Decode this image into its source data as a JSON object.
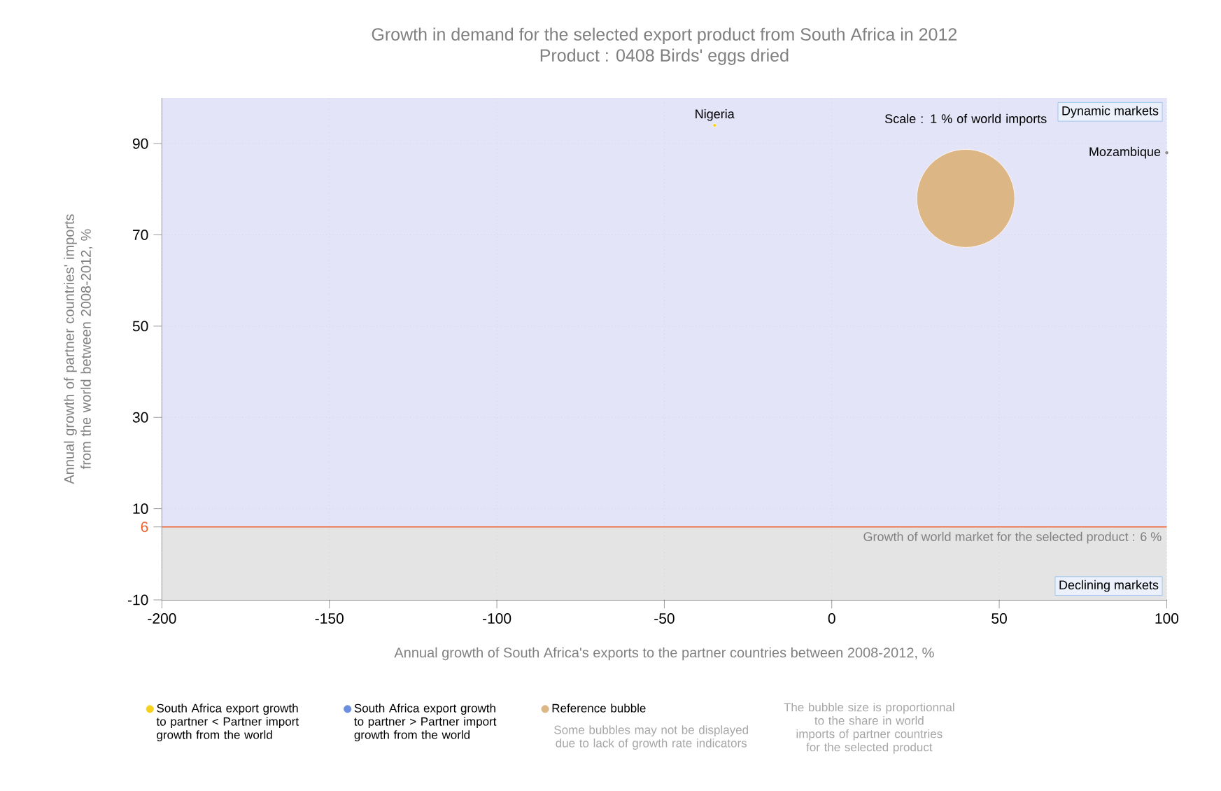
{
  "chart_data": {
    "type": "bubble",
    "title": "Growth in demand for the selected export product from South Africa in 2012",
    "subtitle": "Product : 0408 Birds' eggs dried",
    "xlabel": "Annual growth of South Africa's exports to the partner countries between 2008-2012, %",
    "ylabel": "Annual growth of partner countries' imports from the world between 2008-2012, %",
    "series": [
      {
        "name": "South Africa export growth to partner < Partner import growth from the world",
        "color": "#f5d21e",
        "x": [
          -35
        ],
        "values": [
          94
        ],
        "sizes": [
          0.001
        ]
      },
      {
        "name": "South Africa export growth to partner > Partner import growth from the world",
        "color": "#6a8fe0"
      },
      {
        "name": "Reference bubble",
        "color": "#ddb685",
        "x": [
          40
        ],
        "values": [
          78
        ],
        "sizes": [
          1
        ]
      },
      {
        "color": "#8c8c8c",
        "x": [
          100
        ],
        "values": [
          88
        ],
        "sizes": [
          0.001
        ]
      }
    ],
    "xlim": [
      -200,
      100
    ],
    "ylim": [
      -10,
      100
    ],
    "xticks": [
      -200,
      -150,
      -100,
      -50,
      0,
      50,
      100
    ],
    "yticks": [
      -10,
      {
        "value": 6,
        "label": "6"
      },
      10,
      30,
      50,
      70,
      90
    ],
    "grid": true,
    "legend": "bottom",
    "ref_lines": [
      {
        "axis": "y",
        "value": 6,
        "label": "Growth of world market for the selected product : 6 %",
        "color": "#f0602c"
      }
    ],
    "bands": [
      {
        "axis": "y",
        "from": -10,
        "to": 6,
        "label": "Declining markets",
        "color": "#e4e4e4"
      },
      {
        "axis": "y",
        "from": 6,
        "to": 100,
        "label": "Dynamic markets",
        "color": "#e4e4f8"
      }
    ],
    "annotations": [
      {
        "text": "Nigeria",
        "x": -35,
        "y": 94
      },
      {
        "text": "Mozambique",
        "x": 100,
        "y": 88
      },
      "Scale : 1 % of world imports",
      "Some bubbles may not be displayed due to lack of growth rate indicators",
      "The bubble size is proportionnal to the share in world imports of partner countries for the selected product"
    ]
  }
}
